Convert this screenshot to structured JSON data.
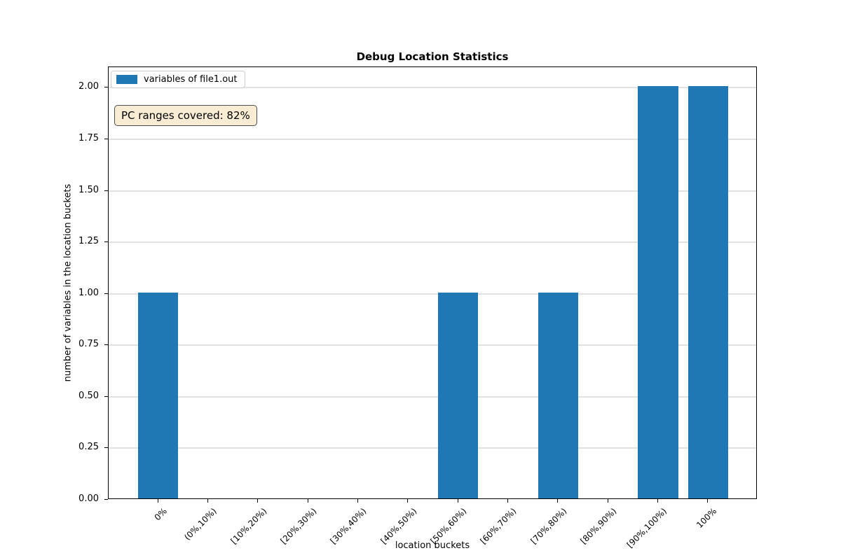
{
  "title": "Debug Location Statistics",
  "legend": {
    "label": "variables of file1.out"
  },
  "annotation": {
    "text": "PC ranges covered: 82%"
  },
  "colors": {
    "bar": "#1f77b4",
    "grid": "#e2e2e2",
    "annotation_bg": "#f8edd4",
    "annotation_border": "#4d4d4d"
  },
  "chart_data": {
    "type": "bar",
    "title": "Debug Location Statistics",
    "categories": [
      "0%",
      "(0%,10%)",
      "[10%,20%)",
      "[20%,30%)",
      "[30%,40%)",
      "[40%,50%)",
      "[50%,60%)",
      "[60%,70%)",
      "[70%,80%)",
      "[80%,90%)",
      "[90%,100%)",
      "100%"
    ],
    "series": [
      {
        "name": "variables of file1.out",
        "values": [
          1,
          0,
          0,
          0,
          0,
          0,
          1,
          0,
          1,
          0,
          2,
          2
        ]
      }
    ],
    "xlabel": "location buckets",
    "ylabel": "number of variables in the location buckets",
    "yticks": [
      0.0,
      0.25,
      0.5,
      0.75,
      1.0,
      1.25,
      1.5,
      1.75,
      2.0
    ],
    "ytick_labels": [
      "0.00",
      "0.25",
      "0.50",
      "0.75",
      "1.00",
      "1.25",
      "1.50",
      "1.75",
      "2.00"
    ],
    "ylim": [
      0,
      2.1
    ],
    "bar_width_fraction": 0.8,
    "grid": "horizontal",
    "legend_position": "upper-left",
    "annotation": "PC ranges covered: 82%",
    "bar_color": "#1f77b4"
  }
}
